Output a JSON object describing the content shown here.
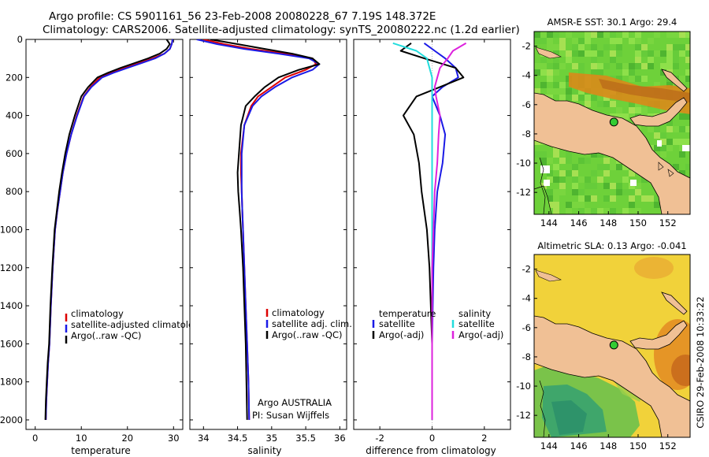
{
  "header": {
    "title_line1": "Argo profile: CS 5901161_56 23-Feb-2008 20080228_67 7.19S 148.372E",
    "title_line2": "Climatology: CARS2006. Satellite-adjusted climatology: synTS_20080222.nc (1.2d earlier)"
  },
  "side_label": "CSIRO 29-Feb-2008 10:33:22",
  "colors": {
    "climatology": "#dd0000",
    "satellite": "#1a1ae6",
    "argo": "#000000",
    "sat_salinity": "#22dddd",
    "argo_salinity": "#dd22dd",
    "land": "#f0c095"
  },
  "chart_data": [
    {
      "type": "line",
      "id": "temperature",
      "xlabel": "temperature",
      "ylabel": "",
      "xlim": [
        -2,
        32
      ],
      "ylim": [
        2050,
        0
      ],
      "xticks": [
        0,
        10,
        20,
        30
      ],
      "yticks": [
        0,
        200,
        400,
        600,
        800,
        1000,
        1200,
        1400,
        1600,
        1800,
        2000
      ],
      "series": [
        {
          "name": "climatology",
          "color": "#dd0000",
          "x": [
            29.8,
            29.6,
            29.2,
            28.0,
            25.5,
            22.5,
            19.5,
            16.5,
            14.0,
            12.0,
            10.5,
            9.0,
            7.8,
            6.8,
            6.0,
            5.4,
            4.8,
            4.3,
            3.8,
            3.4,
            3.1,
            2.8,
            2.6,
            2.4,
            2.3
          ],
          "y": [
            0,
            25,
            50,
            75,
            100,
            125,
            150,
            175,
            200,
            250,
            300,
            400,
            500,
            600,
            700,
            800,
            900,
            1000,
            1200,
            1400,
            1600,
            1700,
            1800,
            1900,
            2000
          ]
        },
        {
          "name": "satellite-adjusted climatology",
          "color": "#1a1ae6",
          "x": [
            29.8,
            29.6,
            29.2,
            28.0,
            26.0,
            23.0,
            20.0,
            17.0,
            14.5,
            12.2,
            10.6,
            9.1,
            7.8,
            6.8,
            6.0,
            5.4,
            4.8,
            4.3,
            3.8,
            3.4,
            3.1,
            2.8,
            2.6,
            2.4,
            2.3
          ],
          "y": [
            0,
            25,
            50,
            75,
            100,
            125,
            150,
            175,
            200,
            250,
            300,
            400,
            500,
            600,
            700,
            800,
            900,
            1000,
            1200,
            1400,
            1600,
            1700,
            1800,
            1900,
            2000
          ]
        },
        {
          "name": "Argo(..raw -QC)",
          "color": "#000000",
          "x": [
            28.5,
            29.2,
            28.5,
            27.0,
            24.5,
            21.5,
            18.5,
            15.8,
            13.5,
            11.5,
            10.0,
            8.6,
            7.4,
            6.5,
            5.8,
            5.2,
            4.7,
            4.2,
            3.7,
            3.3,
            3.0,
            2.7,
            2.5,
            2.3,
            2.2
          ],
          "y": [
            0,
            25,
            50,
            75,
            100,
            125,
            150,
            175,
            200,
            250,
            300,
            400,
            500,
            600,
            700,
            800,
            900,
            1000,
            1200,
            1400,
            1600,
            1700,
            1800,
            1900,
            2000
          ]
        }
      ],
      "legend": {
        "entries": [
          "climatology",
          "satellite-adjusted climatology",
          "Argo(..raw -QC)"
        ]
      }
    },
    {
      "type": "line",
      "id": "salinity",
      "xlabel": "salinity",
      "ylabel": "",
      "xlim": [
        33.8,
        36.1
      ],
      "ylim": [
        2050,
        0
      ],
      "xticks": [
        34,
        34.5,
        35,
        35.5,
        36
      ],
      "series": [
        {
          "name": "climatology",
          "color": "#dd0000",
          "x": [
            34.0,
            34.3,
            34.7,
            35.2,
            35.6,
            35.65,
            35.5,
            35.2,
            35.0,
            34.8,
            34.7,
            34.6,
            34.55,
            34.55,
            34.56,
            34.57,
            34.58,
            34.6,
            34.62,
            34.64,
            34.66,
            34.67
          ],
          "y": [
            0,
            25,
            50,
            75,
            100,
            130,
            160,
            200,
            250,
            300,
            350,
            450,
            600,
            700,
            800,
            900,
            1000,
            1200,
            1400,
            1600,
            1800,
            2000
          ]
        },
        {
          "name": "satellite adj. clim.",
          "color": "#1a1ae6",
          "x": [
            33.9,
            34.2,
            34.6,
            35.1,
            35.55,
            35.7,
            35.6,
            35.3,
            35.05,
            34.85,
            34.72,
            34.6,
            34.56,
            34.56,
            34.56,
            34.57,
            34.58,
            34.6,
            34.62,
            34.64,
            34.66,
            34.67
          ],
          "y": [
            0,
            25,
            50,
            75,
            100,
            130,
            160,
            200,
            250,
            300,
            350,
            450,
            600,
            700,
            800,
            900,
            1000,
            1200,
            1400,
            1600,
            1800,
            2000
          ]
        },
        {
          "name": "Argo(..raw -QC)",
          "color": "#000000",
          "x": [
            34.1,
            34.5,
            34.9,
            35.3,
            35.6,
            35.7,
            35.4,
            35.1,
            34.9,
            34.75,
            34.62,
            34.55,
            34.52,
            34.5,
            34.51,
            34.53,
            34.55,
            34.58,
            34.6,
            34.62,
            34.63,
            34.64
          ],
          "y": [
            0,
            25,
            50,
            75,
            100,
            130,
            160,
            200,
            250,
            300,
            350,
            450,
            600,
            700,
            800,
            900,
            1000,
            1200,
            1400,
            1600,
            1800,
            2000
          ]
        }
      ],
      "legend": {
        "entries": [
          "climatology",
          "satellite adj. clim.",
          "Argo(..raw -QC)"
        ]
      },
      "annotation": {
        "line1": "Argo AUSTRALIA",
        "line2": "PI: Susan Wijffels"
      }
    },
    {
      "type": "line",
      "id": "difference",
      "xlabel": "difference from climatology",
      "ylabel": "",
      "xlim": [
        -3.0,
        3.0
      ],
      "ylim": [
        2050,
        0
      ],
      "xticks": [
        -2,
        0,
        2
      ],
      "series": [
        {
          "name": "temperature satellite",
          "color": "#1a1ae6",
          "x": [
            -0.3,
            0.1,
            0.5,
            0.9,
            1.0,
            0.4,
            0.0,
            0.3,
            0.5,
            0.4,
            0.2,
            0.1,
            0.05,
            0.0,
            0.0
          ],
          "y": [
            20,
            60,
            100,
            150,
            200,
            250,
            300,
            400,
            500,
            650,
            800,
            1000,
            1200,
            1600,
            2000
          ]
        },
        {
          "name": "temperature Argo(-adj)",
          "color": "#000000",
          "x": [
            -0.8,
            -1.2,
            -0.3,
            0.9,
            1.2,
            0.3,
            -0.6,
            -1.1,
            -0.7,
            -0.5,
            -0.4,
            -0.2,
            -0.1,
            0.0,
            0.0
          ],
          "y": [
            20,
            60,
            100,
            150,
            200,
            250,
            300,
            400,
            500,
            650,
            800,
            1000,
            1200,
            1600,
            2000
          ]
        },
        {
          "name": "salinity satellite",
          "color": "#22dddd",
          "x": [
            -1.5,
            -0.6,
            -0.2,
            -0.1,
            0.0,
            0.0,
            0.0,
            0.0,
            0.0,
            0.0,
            0.0,
            0.0,
            0.0,
            0.0,
            0.0
          ],
          "y": [
            20,
            60,
            100,
            150,
            200,
            250,
            300,
            400,
            500,
            650,
            800,
            1000,
            1200,
            1600,
            2000
          ]
        },
        {
          "name": "salinity Argo(-adj)",
          "color": "#dd22dd",
          "x": [
            1.3,
            0.8,
            0.6,
            0.3,
            0.2,
            0.1,
            0.15,
            0.3,
            0.25,
            0.2,
            0.1,
            0.05,
            0.0,
            0.0,
            0.0
          ],
          "y": [
            20,
            60,
            100,
            150,
            200,
            250,
            300,
            400,
            500,
            650,
            800,
            1000,
            1200,
            1600,
            2000
          ]
        }
      ],
      "legend": {
        "col1_title": "temperature",
        "col1": [
          "satellite",
          "Argo(-adj)"
        ],
        "col2_title": "salinity",
        "col2": [
          "satellite",
          "Argo(-adj)"
        ]
      }
    },
    {
      "type": "heatmap",
      "id": "sst-map",
      "title": "AMSR-E SST: 30.1 Argo: 29.4",
      "xlim": [
        143,
        153.5
      ],
      "ylim": [
        -13.5,
        -1
      ],
      "xticks": [
        144,
        146,
        148,
        150,
        152
      ],
      "yticks": [
        -2,
        -4,
        -6,
        -8,
        -10,
        -12
      ],
      "argo_position": {
        "lon": 148.372,
        "lat": -7.19
      }
    },
    {
      "type": "heatmap",
      "id": "sla-map",
      "title": "Altimetric SLA: 0.13 Argo: -0.041",
      "xlim": [
        143,
        153.5
      ],
      "ylim": [
        -13.5,
        -1
      ],
      "xticks": [
        144,
        146,
        148,
        150,
        152
      ],
      "yticks": [
        -2,
        -4,
        -6,
        -8,
        -10,
        -12
      ],
      "argo_position": {
        "lon": 148.372,
        "lat": -7.19
      }
    }
  ]
}
